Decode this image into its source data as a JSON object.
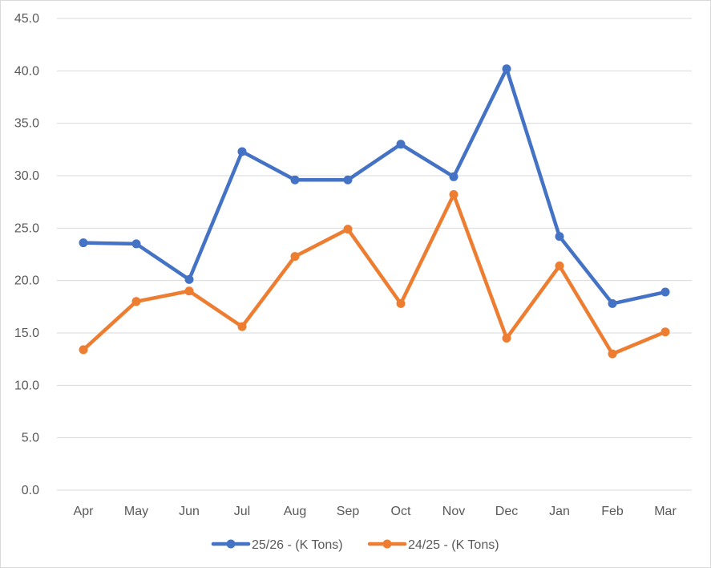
{
  "chart_data": {
    "type": "line",
    "title": "",
    "xlabel": "",
    "ylabel": "",
    "categories": [
      "Apr",
      "May",
      "Jun",
      "Jul",
      "Aug",
      "Sep",
      "Oct",
      "Nov",
      "Dec",
      "Jan",
      "Feb",
      "Mar"
    ],
    "ylim": [
      0,
      45
    ],
    "yticks": [
      "0.0",
      "5.0",
      "10.0",
      "15.0",
      "20.0",
      "25.0",
      "30.0",
      "35.0",
      "40.0",
      "45.0"
    ],
    "grid": true,
    "legend_position": "bottom",
    "series": [
      {
        "name": "25/26 - (K Tons)",
        "color": "#4472C4",
        "values": [
          23.6,
          23.5,
          20.1,
          32.3,
          29.6,
          29.6,
          33.0,
          29.9,
          40.2,
          24.2,
          17.8,
          18.9
        ]
      },
      {
        "name": "24/25 - (K Tons)",
        "color": "#ED7D31",
        "values": [
          13.4,
          18.0,
          19.0,
          15.6,
          22.3,
          24.9,
          17.8,
          28.2,
          14.5,
          21.4,
          13.0,
          15.1
        ]
      }
    ]
  }
}
